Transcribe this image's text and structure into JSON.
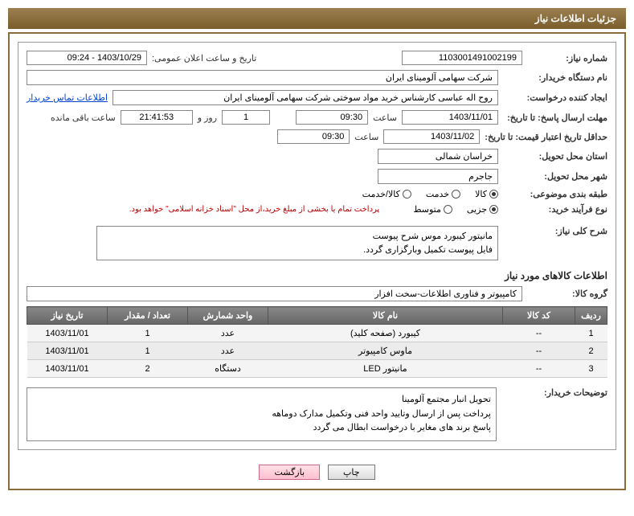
{
  "header": {
    "title": "جزئیات اطلاعات نیاز"
  },
  "fields": {
    "need_no_label": "شماره نیاز:",
    "need_no": "1103001491002199",
    "announce_label": "تاریخ و ساعت اعلان عمومی:",
    "announce_value": "1403/10/29 - 09:24",
    "buyer_org_label": "نام دستگاه خریدار:",
    "buyer_org": "شرکت سهامی آلومینای ایران",
    "requester_label": "ایجاد کننده درخواست:",
    "requester": "روح اله عباسی کارشناس خرید مواد سوختی شرکت سهامی آلومینای ایران",
    "contact_link": "اطلاعات تماس خریدار",
    "deadline_send_label": "مهلت ارسال پاسخ:",
    "until_label": "تا تاریخ:",
    "deadline_date": "1403/11/01",
    "time_label": "ساعت",
    "deadline_time": "09:30",
    "days_val": "1",
    "days_and": "روز و",
    "countdown": "21:41:53",
    "remaining": "ساعت باقی مانده",
    "validity_label": "حداقل تاریخ اعتبار قیمت:",
    "validity_date": "1403/11/02",
    "validity_time": "09:30",
    "province_label": "استان محل تحویل:",
    "province": "خراسان شمالی",
    "city_label": "شهر محل تحویل:",
    "city": "جاجرم",
    "category_label": "طبقه بندی موضوعی:",
    "cat_goods": "کالا",
    "cat_service": "خدمت",
    "cat_both": "کالا/خدمت",
    "process_label": "نوع فرآیند خرید:",
    "proc_small": "جزیی",
    "proc_medium": "متوسط",
    "payment_note": "پرداخت تمام یا بخشی از مبلغ خرید،از محل \"اسناد خزانه اسلامی\" خواهد بود.",
    "summary_label": "شرح کلی نیاز:",
    "summary_line1": "مانیتور کیبورد موس شرح پیوست",
    "summary_line2": "فایل پیوست تکمیل وبارگزاری گردد.",
    "goods_section": "اطلاعات کالاهای مورد نیاز",
    "goods_group_label": "گروه کالا:",
    "goods_group": "کامپیوتر و فناوری اطلاعات-سخت افزار",
    "buyer_notes_label": "توضیحات خریدار:",
    "note1": "تحویل انبار مجتمع آلومینا",
    "note2": "پرداخت پس از ارسال وتایید واحد فنی وتکمیل مدارک دوماهه",
    "note3": "پاسخ برند های مغایر با درخواست ابطال می گردد"
  },
  "table": {
    "headers": {
      "row": "ردیف",
      "code": "کد کالا",
      "name": "نام کالا",
      "unit": "واحد شمارش",
      "qty": "تعداد / مقدار",
      "date": "تاریخ نیاز"
    },
    "rows": [
      {
        "n": "1",
        "code": "--",
        "name": "کیبورد (صفحه کلید)",
        "unit": "عدد",
        "qty": "1",
        "date": "1403/11/01"
      },
      {
        "n": "2",
        "code": "--",
        "name": "ماوس کامپیوتر",
        "unit": "عدد",
        "qty": "1",
        "date": "1403/11/01"
      },
      {
        "n": "3",
        "code": "--",
        "name": "مانیتور LED",
        "unit": "دستگاه",
        "qty": "2",
        "date": "1403/11/01"
      }
    ]
  },
  "buttons": {
    "print": "چاپ",
    "back": "بازگشت"
  },
  "colors": {
    "header_bg": "#8a6d3b",
    "border": "#8a6d3b",
    "link": "#0044cc",
    "note_red": "#b00"
  }
}
